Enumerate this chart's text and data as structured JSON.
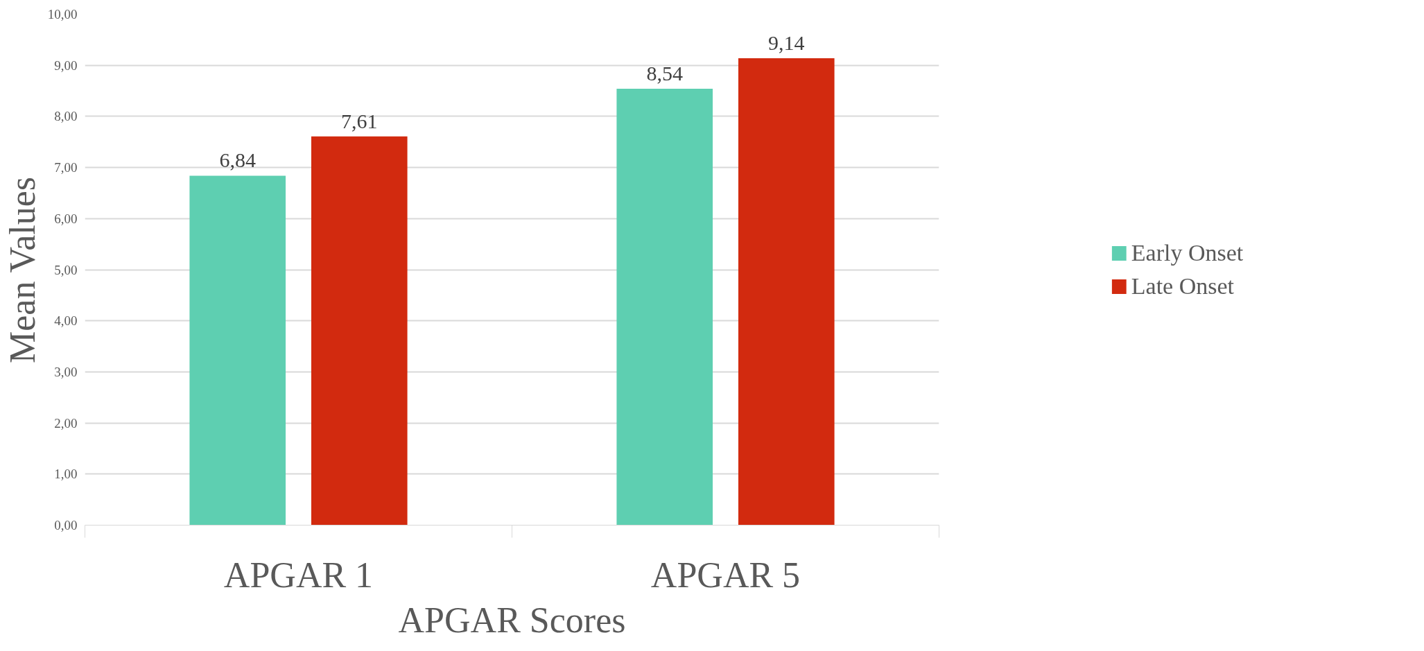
{
  "chart_data": {
    "type": "bar",
    "xlabel": "APGAR Scores",
    "ylabel": "Mean Values",
    "categories": [
      "APGAR 1",
      "APGAR 5"
    ],
    "series": [
      {
        "name": "Early Onset",
        "color": "#5ecfb1",
        "values": [
          6.84,
          8.54
        ],
        "value_labels": [
          "6,84",
          "8,54"
        ]
      },
      {
        "name": "Late Onset",
        "color": "#d22a0f",
        "values": [
          7.61,
          9.14
        ],
        "value_labels": [
          "7,61",
          "9,14"
        ]
      }
    ],
    "ylim": [
      0,
      10
    ],
    "yticks": [
      {
        "value": 0,
        "label": "0,00"
      },
      {
        "value": 1,
        "label": "1,00"
      },
      {
        "value": 2,
        "label": "2,00"
      },
      {
        "value": 3,
        "label": "3,00"
      },
      {
        "value": 4,
        "label": "4,00"
      },
      {
        "value": 5,
        "label": "5,00"
      },
      {
        "value": 6,
        "label": "6,00"
      },
      {
        "value": 7,
        "label": "7,00"
      },
      {
        "value": 8,
        "label": "8,00"
      },
      {
        "value": 9,
        "label": "9,00"
      },
      {
        "value": 10,
        "label": "10,00"
      }
    ],
    "grid": "y",
    "legend": "right"
  }
}
